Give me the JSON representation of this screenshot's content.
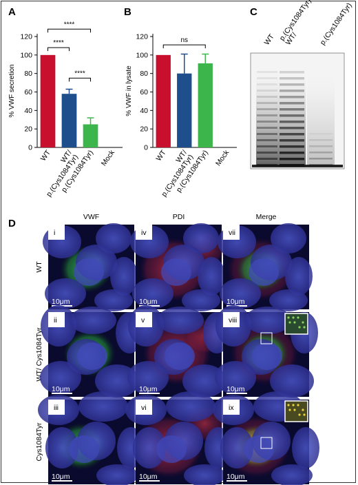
{
  "panels": {
    "A": "A",
    "B": "B",
    "C": "C",
    "D": "D"
  },
  "colors": {
    "wt": "#c8102e",
    "het": "#1f4e8c",
    "hom": "#3cb64a"
  },
  "chart_data": [
    {
      "id": "A",
      "type": "bar",
      "ylabel": "% VWF secretion",
      "ylim": [
        0,
        120
      ],
      "yticks": [
        0,
        20,
        40,
        60,
        80,
        100,
        120
      ],
      "categories": [
        "WT",
        "WT/ p.(Cys1084Tyr)",
        "p.(Cys1084Tyr)",
        "Mock"
      ],
      "category_lines": [
        [
          "WT"
        ],
        [
          "WT/",
          "p.(Cys1084Tyr)"
        ],
        [
          "p.(Cys1084Tyr)"
        ],
        [
          "Mock"
        ]
      ],
      "values": [
        100,
        58,
        25,
        0
      ],
      "errors": [
        0,
        5,
        7,
        0
      ],
      "colors": [
        "#c8102e",
        "#1f4e8c",
        "#3cb64a",
        "none"
      ],
      "significance": [
        {
          "from": 0,
          "to": 1,
          "label": "****",
          "y": 108
        },
        {
          "from": 0,
          "to": 2,
          "label": "****",
          "y": 128
        },
        {
          "from": 1,
          "to": 2,
          "label": "****",
          "y": 75
        }
      ]
    },
    {
      "id": "B",
      "type": "bar",
      "ylabel": "% VWF in lysate",
      "ylim": [
        0,
        120
      ],
      "yticks": [
        0,
        20,
        40,
        60,
        80,
        100,
        120
      ],
      "categories": [
        "WT",
        "WT/ p.(Cys1084Tyr)",
        "p.(Cys1084Tyr)",
        "Mock"
      ],
      "category_lines": [
        [
          "WT"
        ],
        [
          "WT/",
          "p.(Cys1084Tyr)"
        ],
        [
          "p.(Cys1084Tyr)"
        ],
        [
          "Mock"
        ]
      ],
      "values": [
        100,
        80,
        91,
        0
      ],
      "errors": [
        0,
        21,
        10,
        0
      ],
      "colors": [
        "#c8102e",
        "#1f4e8c",
        "#3cb64a",
        "none"
      ],
      "significance": [
        {
          "from": 0,
          "to": 2,
          "label": "ns",
          "y": 111
        }
      ]
    }
  ],
  "gel": {
    "lanes": [
      "WT",
      "WT/ p.(Cys1084Tyr)",
      "p.(Cys1084Tyr)"
    ],
    "lane_lines": [
      [
        "WT"
      ],
      [
        "WT/",
        "p.(Cys1084Tyr)"
      ],
      [
        "p.(Cys1084Tyr)"
      ]
    ]
  },
  "microscopy": {
    "columns": [
      "VWF",
      "PDI",
      "Merge"
    ],
    "rows": [
      "WT",
      "WT/ Cys1084Tyr",
      "Cys1084Tyr"
    ],
    "numerals": [
      [
        "i",
        "iv",
        "vii"
      ],
      [
        "ii",
        "v",
        "viii"
      ],
      [
        "iii",
        "vi",
        "ix"
      ]
    ],
    "scale": "10μm"
  }
}
